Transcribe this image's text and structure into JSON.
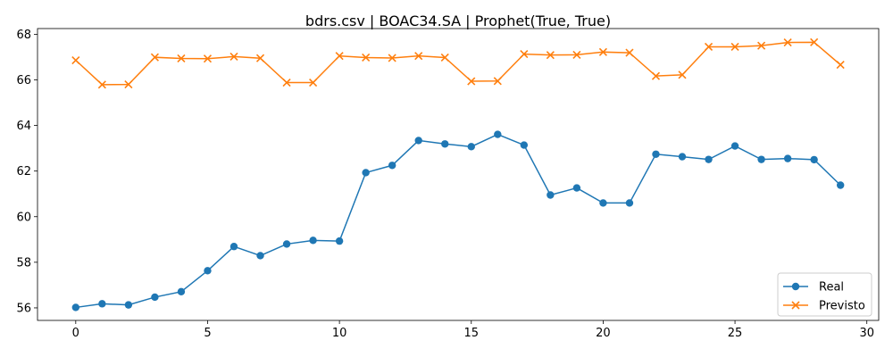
{
  "chart_data": {
    "type": "line",
    "title": "bdrs.csv | BOAC34.SA | Prophet(True, True)",
    "xlabel": "",
    "ylabel": "",
    "xlim": [
      -1.45,
      30.45
    ],
    "ylim": [
      55.45,
      68.25
    ],
    "xticks": [
      0,
      5,
      10,
      15,
      20,
      25,
      30
    ],
    "yticks": [
      56,
      58,
      60,
      62,
      64,
      66,
      68
    ],
    "grid": false,
    "legend_position": "lower right",
    "x": [
      0,
      1,
      2,
      3,
      4,
      5,
      6,
      7,
      8,
      9,
      10,
      11,
      12,
      13,
      14,
      15,
      16,
      17,
      18,
      19,
      20,
      21,
      22,
      23,
      24,
      25,
      26,
      27,
      28,
      29
    ],
    "series": [
      {
        "name": "Real",
        "color": "#1f77b4",
        "marker": "circle",
        "values": [
          56.02,
          56.18,
          56.13,
          56.47,
          56.71,
          57.63,
          58.69,
          58.29,
          58.8,
          58.96,
          58.93,
          61.93,
          62.25,
          63.34,
          63.19,
          63.07,
          63.61,
          63.14,
          60.95,
          61.26,
          60.6,
          60.6,
          62.74,
          62.63,
          62.51,
          63.1,
          62.51,
          62.55,
          62.5,
          61.38
        ]
      },
      {
        "name": "Previsto",
        "color": "#ff7f0e",
        "marker": "x",
        "values": [
          66.86,
          65.79,
          65.8,
          66.99,
          66.94,
          66.93,
          67.02,
          66.95,
          65.88,
          65.88,
          67.05,
          66.98,
          66.96,
          67.05,
          66.98,
          65.94,
          65.95,
          67.13,
          67.09,
          67.1,
          67.22,
          67.19,
          66.17,
          66.22,
          67.45,
          67.45,
          67.5,
          67.64,
          67.65,
          66.66
        ]
      }
    ]
  }
}
